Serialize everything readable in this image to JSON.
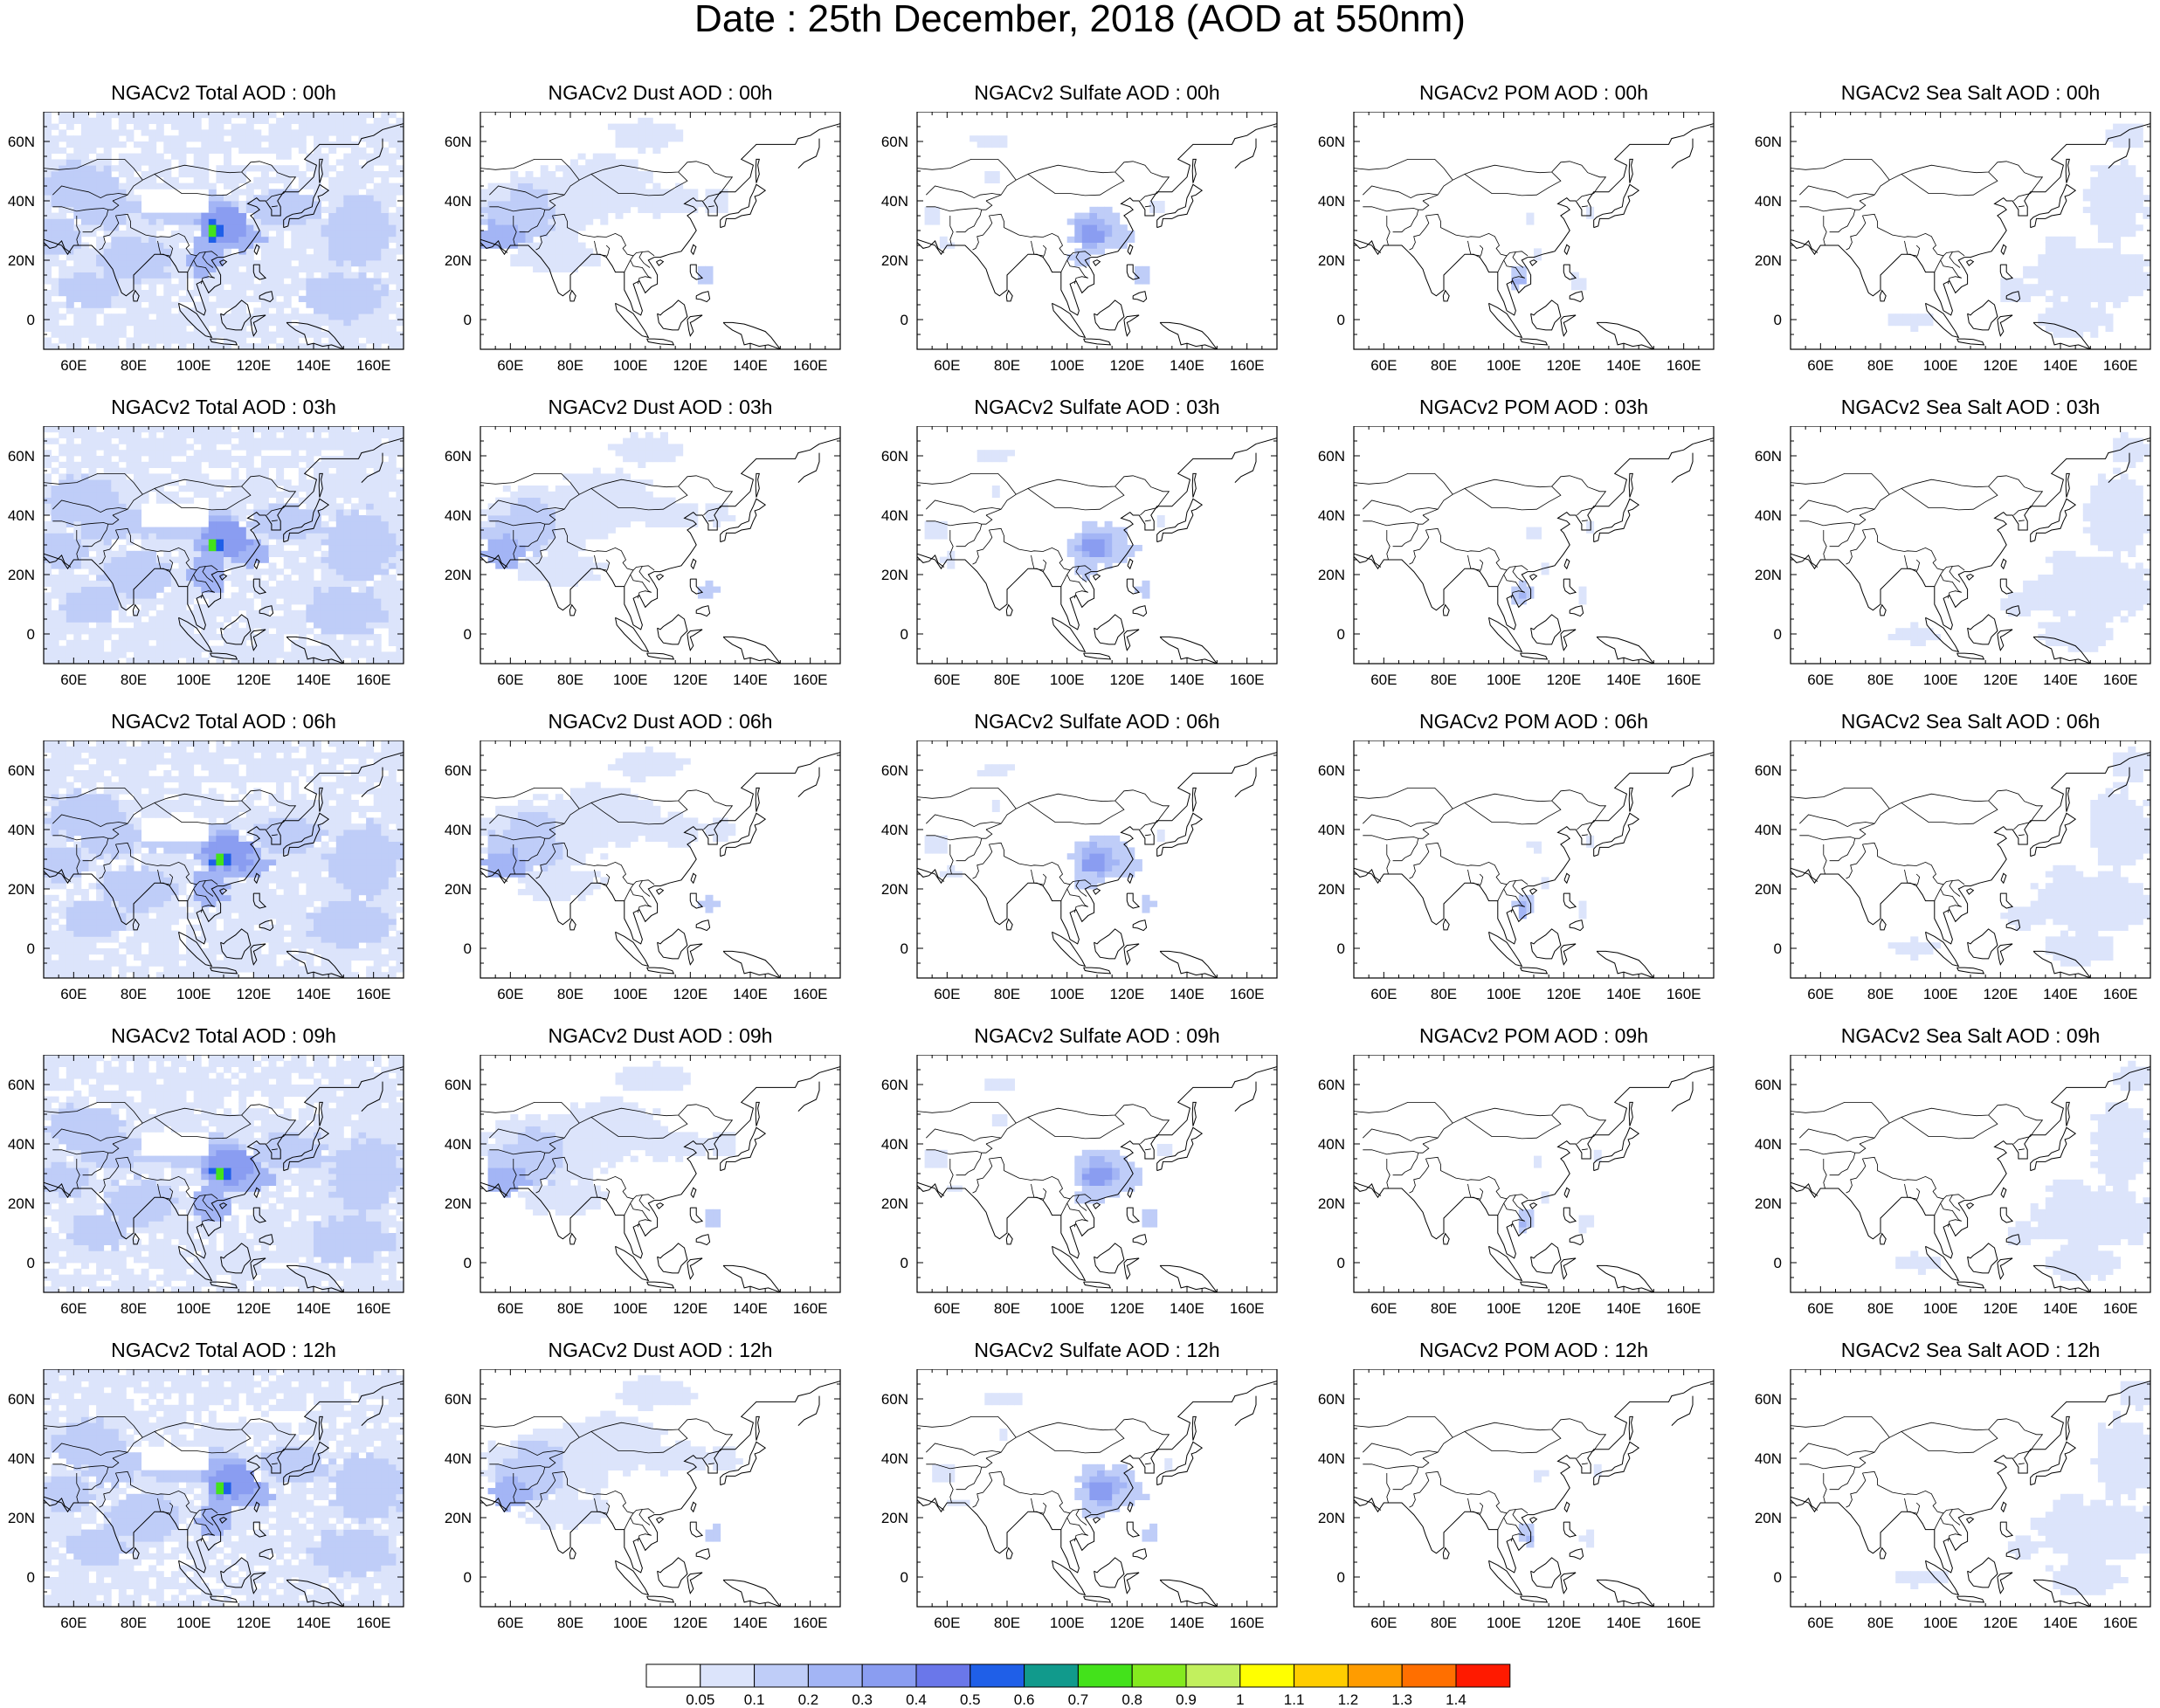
{
  "title": "Date : 25th December, 2018 (AOD at 550nm)",
  "panel_titles": [
    [
      "NGACv2 Total AOD : 00h",
      "NGACv2 Dust AOD : 00h",
      "NGACv2 Sulfate AOD : 00h",
      "NGACv2 POM AOD : 00h",
      "NGACv2 Sea Salt AOD : 00h"
    ],
    [
      "NGACv2 Total AOD : 03h",
      "NGACv2 Dust AOD : 03h",
      "NGACv2 Sulfate AOD : 03h",
      "NGACv2 POM AOD : 03h",
      "NGACv2 Sea Salt AOD : 03h"
    ],
    [
      "NGACv2 Total AOD : 06h",
      "NGACv2 Dust AOD : 06h",
      "NGACv2 Sulfate AOD : 06h",
      "NGACv2 POM AOD : 06h",
      "NGACv2 Sea Salt AOD : 06h"
    ],
    [
      "NGACv2 Total AOD : 09h",
      "NGACv2 Dust AOD : 09h",
      "NGACv2 Sulfate AOD : 09h",
      "NGACv2 POM AOD : 09h",
      "NGACv2 Sea Salt  AOD : 09h"
    ],
    [
      "NGACv2 Total AOD  : 12h",
      "NGACv2 Dust AOD : 12h",
      "NGACv2 Sulfate AOD : 12h",
      "NGACv2 POM  AOD : 12h",
      "NGACv2 Sea Salt  AOD : 12h"
    ]
  ],
  "map": {
    "lon_range": [
      50,
      170
    ],
    "lat_range": [
      -10,
      70
    ],
    "lon_ticks": [
      "60E",
      "80E",
      "100E",
      "120E",
      "140E",
      "160E"
    ],
    "lon_tick_values": [
      60,
      80,
      100,
      120,
      140,
      160
    ],
    "lat_ticks": [
      "60N",
      "40N",
      "20N",
      "0"
    ],
    "lat_tick_values": [
      60,
      40,
      20,
      0
    ]
  },
  "colorbar": {
    "labels": [
      "0.05",
      "0.1",
      "0.2",
      "0.3",
      "0.4",
      "0.5",
      "0.6",
      "0.7",
      "0.8",
      "0.9",
      "1",
      "1.1",
      "1.2",
      "1.3",
      "1.4"
    ],
    "colors": [
      "#ffffff",
      "#dce4fb",
      "#bfcdf8",
      "#a3b5f5",
      "#8a9df1",
      "#6a77ea",
      "#1f5fe8",
      "#119a8c",
      "#43e21b",
      "#84ea1f",
      "#c2f05e",
      "#ffff00",
      "#ffcd00",
      "#ff9c00",
      "#ff6f00",
      "#ff1a00"
    ]
  }
}
